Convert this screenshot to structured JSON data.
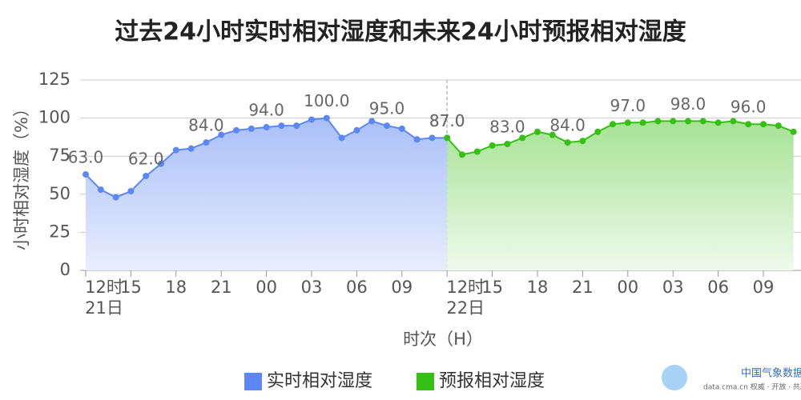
{
  "chart_data": {
    "type": "area",
    "title": "过去24小时实时相对湿度和未来24小时预报相对湿度",
    "y_label": "小时相对湿度（%）",
    "x_label": "时次（H）",
    "categories": [
      "12时",
      null,
      null,
      "15",
      null,
      null,
      "18",
      null,
      null,
      "21",
      null,
      null,
      "00",
      null,
      null,
      "03",
      null,
      null,
      "06",
      null,
      null,
      "09",
      null,
      null,
      "12时",
      null,
      null,
      "15",
      null,
      null,
      "18",
      null,
      null,
      "21",
      null,
      null,
      "00",
      null,
      null,
      "03",
      null,
      null,
      "06",
      null,
      null,
      "09",
      null,
      null
    ],
    "dates": [
      "21日",
      null,
      null,
      null,
      null,
      null,
      null,
      null,
      null,
      null,
      null,
      null,
      null,
      null,
      null,
      null,
      null,
      null,
      null,
      null,
      null,
      null,
      null,
      null,
      "22日",
      null,
      null,
      null,
      null,
      null,
      null,
      null,
      null,
      null,
      null,
      null,
      null,
      null,
      null,
      null,
      null,
      null,
      null,
      null,
      null,
      null,
      null,
      null
    ],
    "series": [
      {
        "name": "实时相对湿度",
        "color": "#5b87f7",
        "values": [
          63,
          53,
          48,
          52,
          62,
          70,
          79,
          80,
          84,
          89,
          92,
          93,
          94,
          95,
          95,
          99,
          100,
          87,
          92,
          98,
          95,
          93,
          86,
          87,
          87,
          null,
          null,
          null,
          null,
          null,
          null,
          null,
          null,
          null,
          null,
          null,
          null,
          null,
          null,
          null,
          null,
          null,
          null,
          null,
          null,
          null,
          null,
          null
        ],
        "value_labels": [
          "63.0",
          null,
          null,
          null,
          "62.0",
          null,
          null,
          null,
          "84.0",
          null,
          null,
          null,
          "94.0",
          null,
          null,
          null,
          "100.0",
          null,
          null,
          null,
          "95.0",
          null,
          null,
          null,
          "87.0",
          null,
          null,
          null,
          null,
          null,
          null,
          null,
          null,
          null,
          null,
          null,
          null,
          null,
          null,
          null,
          null,
          null,
          null,
          null,
          null,
          null,
          null,
          null
        ]
      },
      {
        "name": "预报相对湿度",
        "color": "#34c114",
        "values": [
          null,
          null,
          null,
          null,
          null,
          null,
          null,
          null,
          null,
          null,
          null,
          null,
          null,
          null,
          null,
          null,
          null,
          null,
          null,
          null,
          null,
          null,
          null,
          null,
          87,
          76,
          78,
          82,
          83,
          87,
          91,
          89,
          84,
          85,
          91,
          96,
          97,
          97,
          98,
          98,
          98,
          98,
          97,
          98,
          96,
          96,
          95,
          91
        ],
        "value_labels": [
          null,
          null,
          null,
          null,
          null,
          null,
          null,
          null,
          null,
          null,
          null,
          null,
          null,
          null,
          null,
          null,
          null,
          null,
          null,
          null,
          null,
          null,
          null,
          null,
          "87.0",
          null,
          null,
          null,
          "83.0",
          null,
          null,
          null,
          "84.0",
          null,
          null,
          null,
          "97.0",
          null,
          null,
          null,
          "98.0",
          null,
          null,
          null,
          "96.0",
          null,
          null,
          null
        ]
      }
    ],
    "ylim": [
      0,
      125
    ],
    "yticks": [
      0,
      25,
      50,
      75,
      100,
      125
    ],
    "grid": true
  },
  "logo": {
    "name": "中国气象数据网",
    "tagline": "data.cma.cn 权威 · 开放 · 共赢"
  }
}
